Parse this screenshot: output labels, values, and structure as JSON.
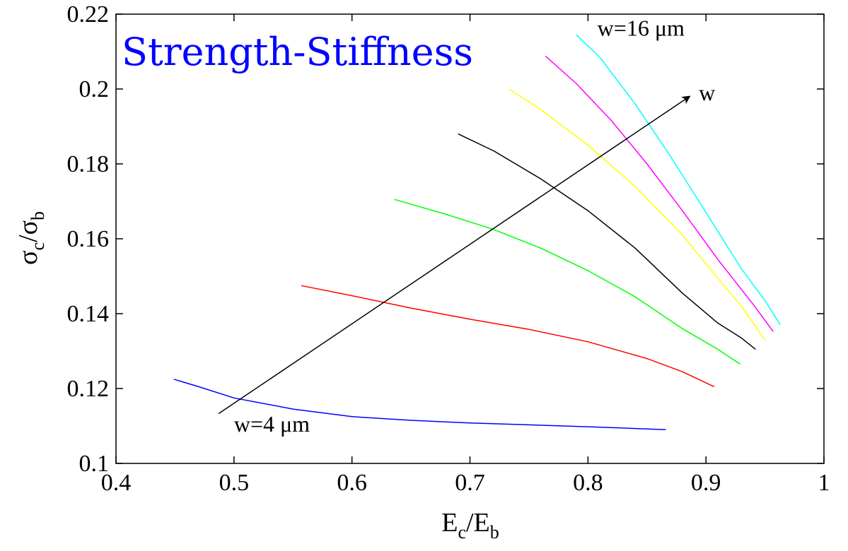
{
  "chart_data": {
    "type": "line",
    "title": "Strength-Stiffness",
    "xlabel": {
      "main": "E",
      "sub1": "c",
      "sep": "/E",
      "sub2": "b"
    },
    "ylabel": {
      "main": "σ",
      "sub1": "c",
      "sep": "/σ",
      "sub2": "b"
    },
    "xlim": [
      0.4,
      1.0
    ],
    "ylim": [
      0.1,
      0.22
    ],
    "xticks": [
      "0.4",
      "0.5",
      "0.6",
      "0.7",
      "0.8",
      "0.9",
      "1"
    ],
    "yticks": [
      "0.1",
      "0.12",
      "0.14",
      "0.16",
      "0.18",
      "0.2",
      "0.22"
    ],
    "grid": false,
    "series": [
      {
        "color": "#0000ff",
        "x": [
          0.449,
          0.47,
          0.5,
          0.55,
          0.6,
          0.65,
          0.7,
          0.75,
          0.8,
          0.85,
          0.866
        ],
        "y": [
          0.1225,
          0.1205,
          0.1175,
          0.1145,
          0.1125,
          0.1115,
          0.1108,
          0.1103,
          0.1098,
          0.1092,
          0.109
        ]
      },
      {
        "color": "#ff0000",
        "x": [
          0.557,
          0.6,
          0.65,
          0.7,
          0.75,
          0.8,
          0.85,
          0.88,
          0.907
        ],
        "y": [
          0.1475,
          0.1448,
          0.1415,
          0.1385,
          0.1358,
          0.1325,
          0.128,
          0.1245,
          0.1205
        ]
      },
      {
        "color": "#00ff00",
        "x": [
          0.636,
          0.68,
          0.72,
          0.76,
          0.8,
          0.84,
          0.88,
          0.91,
          0.929
        ],
        "y": [
          0.1705,
          0.1665,
          0.1625,
          0.1575,
          0.1515,
          0.1445,
          0.136,
          0.1305,
          0.1265
        ]
      },
      {
        "color": "#000000",
        "x": [
          0.69,
          0.72,
          0.76,
          0.8,
          0.84,
          0.88,
          0.91,
          0.93,
          0.942
        ],
        "y": [
          0.188,
          0.1835,
          0.176,
          0.1675,
          0.1575,
          0.1455,
          0.1375,
          0.1335,
          0.1305
        ]
      },
      {
        "color": "#ffff00",
        "x": [
          0.733,
          0.76,
          0.8,
          0.84,
          0.88,
          0.91,
          0.93,
          0.95
        ],
        "y": [
          0.2,
          0.1945,
          0.185,
          0.174,
          0.161,
          0.1495,
          0.142,
          0.133
        ]
      },
      {
        "color": "#ff00ff",
        "x": [
          0.764,
          0.79,
          0.82,
          0.85,
          0.88,
          0.91,
          0.94,
          0.957
        ],
        "y": [
          0.2088,
          0.2015,
          0.1915,
          0.18,
          0.1675,
          0.1545,
          0.1425,
          0.1352
        ]
      },
      {
        "color": "#00ffff",
        "x": [
          0.79,
          0.81,
          0.84,
          0.87,
          0.9,
          0.93,
          0.95,
          0.963
        ],
        "y": [
          0.2145,
          0.2085,
          0.196,
          0.182,
          0.167,
          0.152,
          0.1435,
          0.137
        ]
      }
    ],
    "annotations": [
      {
        "text": "w=4 μm",
        "x": 0.5,
        "y": 0.1085
      },
      {
        "text": "w=16 μm",
        "x": 0.808,
        "y": 0.2142
      },
      {
        "text": "w",
        "x": 0.894,
        "y": 0.197
      }
    ],
    "arrow": {
      "x1": 0.487,
      "y1": 0.1133,
      "x2": 0.886,
      "y2": 0.198
    }
  }
}
